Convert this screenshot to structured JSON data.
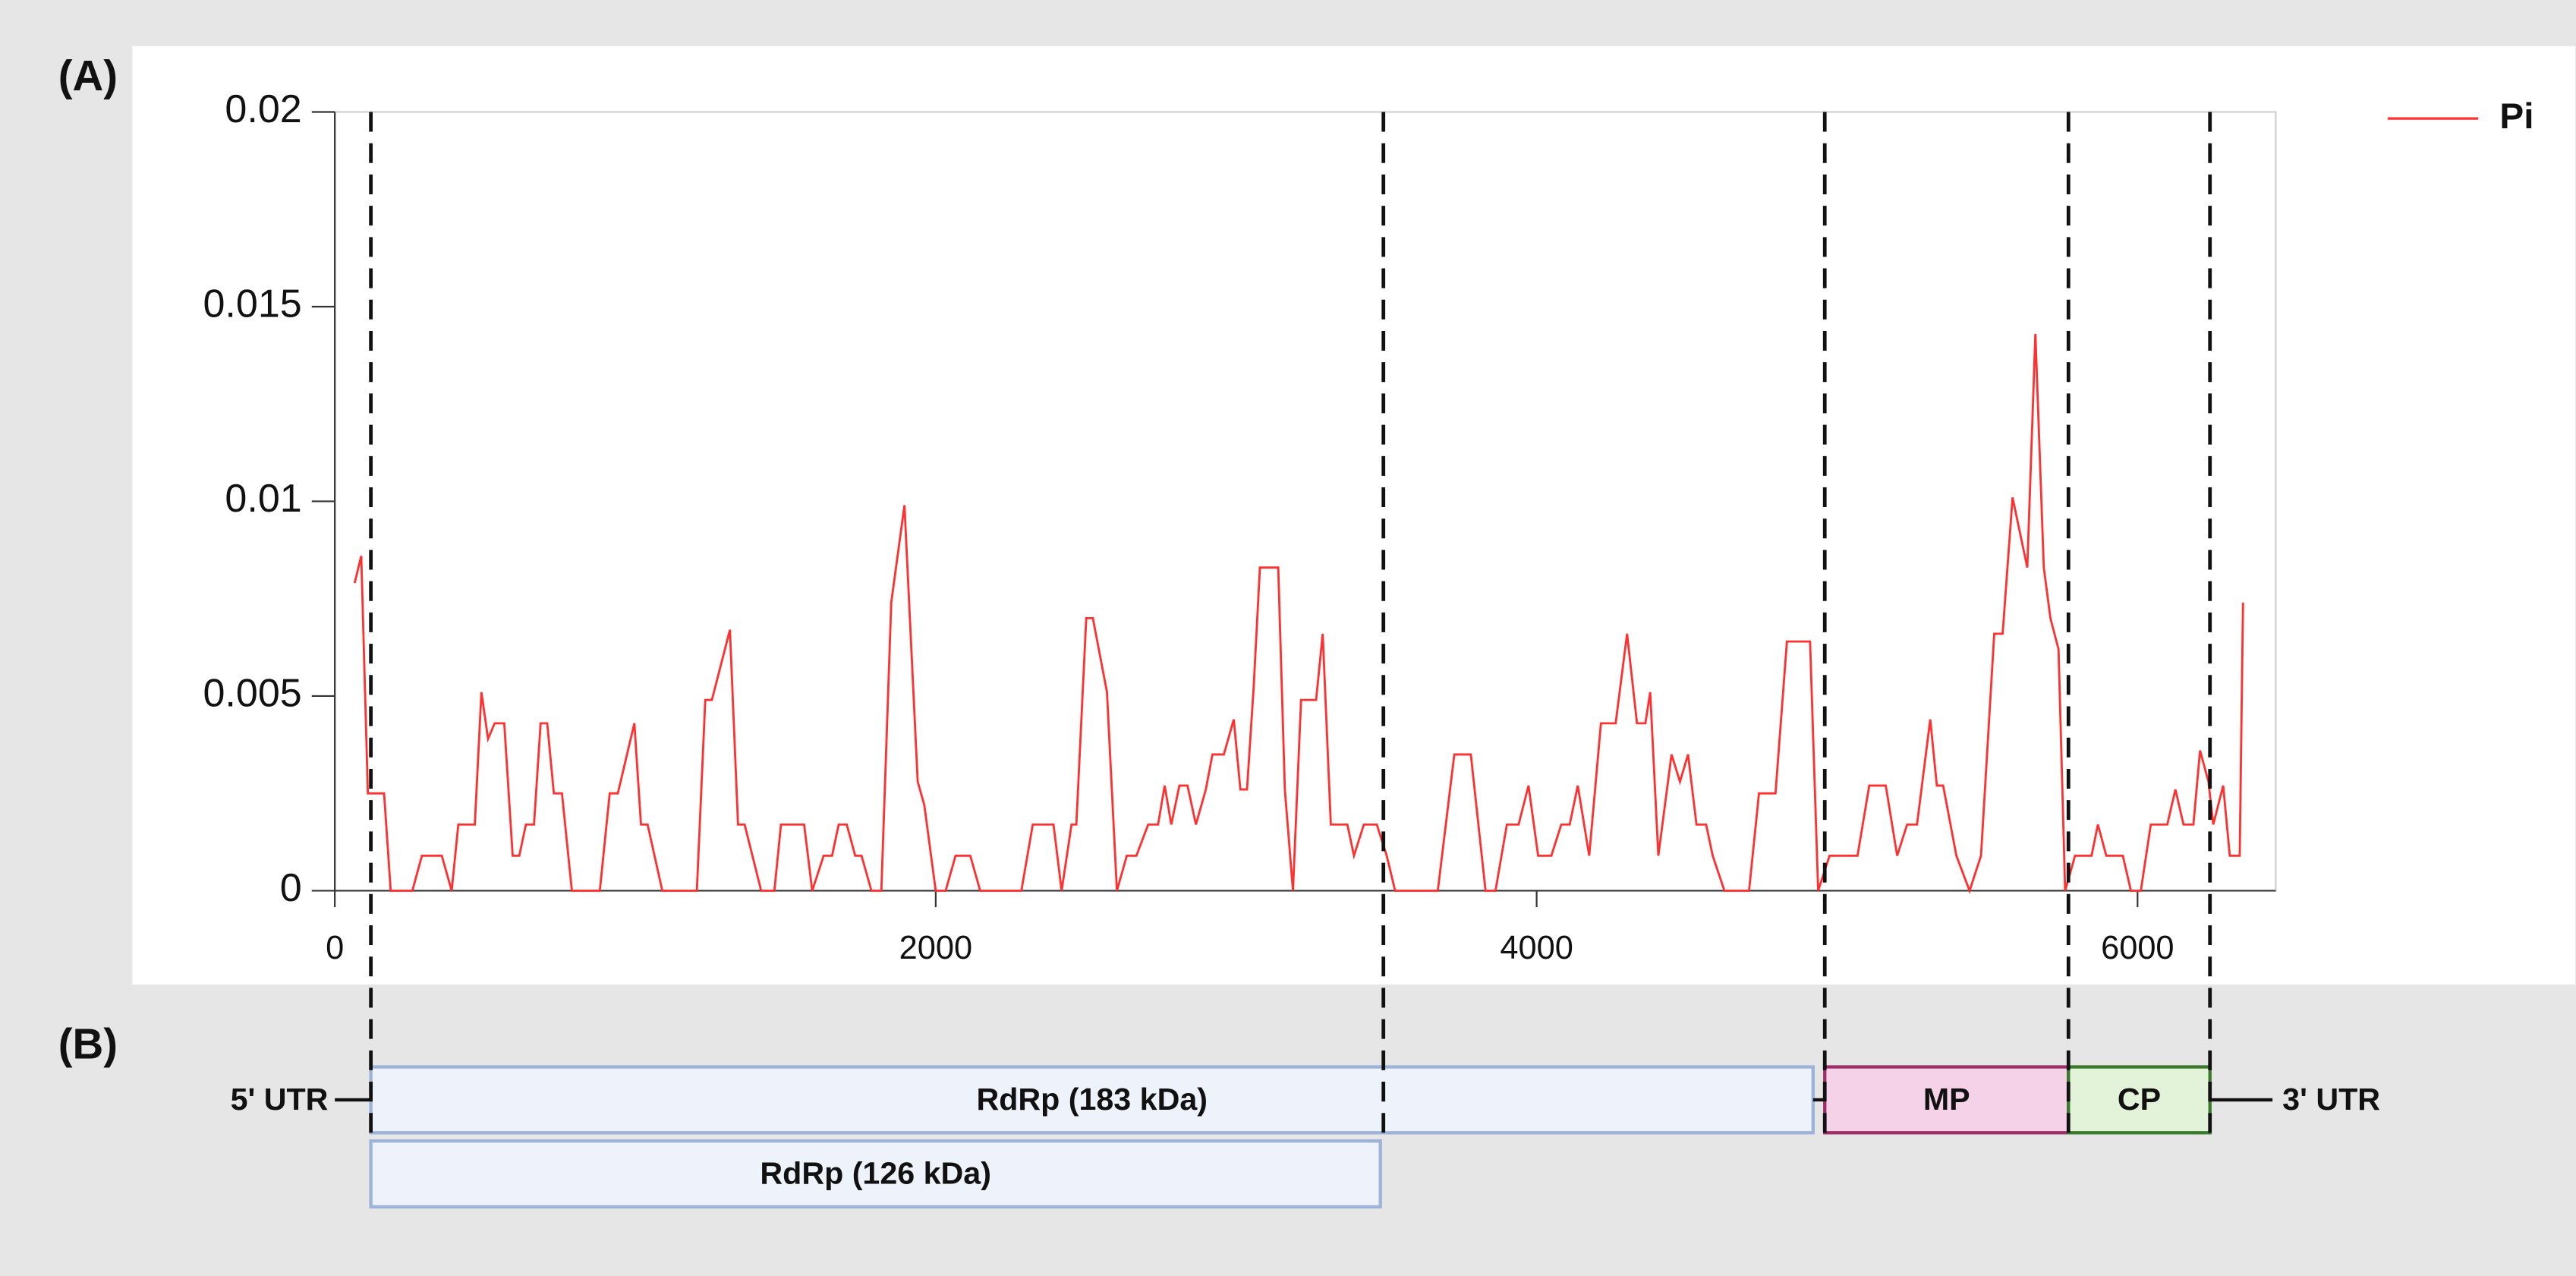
{
  "chart_data": {
    "type": "line",
    "panel_labels": [
      "(A)",
      "(B)"
    ],
    "xlim": [
      0,
      6460
    ],
    "xticks": [
      0,
      2000,
      4000,
      6000
    ],
    "ylim": [
      0,
      0.02
    ],
    "yticks": [
      0,
      0.005,
      0.01,
      0.015,
      0.02
    ],
    "legend": "top-right",
    "series": [
      {
        "name": "Pi",
        "color": "#ff3030",
        "x": [
          66,
          88,
          110,
          164,
          186,
          258,
          290,
          356,
          389,
          411,
          466,
          488,
          510,
          532,
          564,
          592,
          614,
          636,
          663,
          685,
          707,
          729,
          756,
          789,
          882,
          915,
          942,
          997,
          1019,
          1041,
          1090,
          1205,
          1233,
          1255,
          1315,
          1342,
          1364,
          1419,
          1463,
          1485,
          1562,
          1589,
          1627,
          1655,
          1677,
          1704,
          1732,
          1753,
          1786,
          1819,
          1852,
          1896,
          1940,
          1962,
          2000,
          2033,
          2066,
          2115,
          2148,
          2285,
          2323,
          2392,
          2419,
          2452,
          2468,
          2501,
          2523,
          2570,
          2603,
          2636,
          2668,
          2707,
          2740,
          2762,
          2784,
          2811,
          2838,
          2866,
          2899,
          2921,
          2959,
          2992,
          3014,
          3036,
          3058,
          3079,
          3140,
          3162,
          3189,
          3216,
          3266,
          3288,
          3315,
          3370,
          3392,
          3425,
          3468,
          3501,
          3529,
          3671,
          3726,
          3781,
          3830,
          3863,
          3901,
          3940,
          3973,
          4005,
          4049,
          4082,
          4110,
          4137,
          4175,
          4214,
          4247,
          4263,
          4301,
          4334,
          4362,
          4378,
          4405,
          4449,
          4477,
          4504,
          4532,
          4564,
          4586,
          4625,
          4707,
          4740,
          4795,
          4833,
          4910,
          4937,
          4975,
          5068,
          5107,
          5162,
          5200,
          5233,
          5266,
          5310,
          5332,
          5353,
          5397,
          5441,
          5479,
          5523,
          5551,
          5584,
          5633,
          5660,
          5688,
          5710,
          5737,
          5759,
          5792,
          5847,
          5868,
          5896,
          5951,
          5978,
          6011,
          6044,
          6099,
          6126,
          6153,
          6186,
          6208,
          6236,
          6252,
          6285,
          6307,
          6340,
          6351
        ],
        "values": [
          0.0079,
          0.0086,
          0.0025,
          0.0025,
          0,
          0,
          0.0009,
          0.0009,
          0,
          0.0017,
          0.0017,
          0.0051,
          0.0039,
          0.0043,
          0.0043,
          0.0009,
          0.0009,
          0.0017,
          0.0017,
          0.0043,
          0.0043,
          0.0025,
          0.0025,
          0,
          0,
          0.0025,
          0.0025,
          0.0043,
          0.0017,
          0.0017,
          0,
          0,
          0.0049,
          0.0049,
          0.0067,
          0.0017,
          0.0017,
          0,
          0,
          0.0017,
          0.0017,
          0,
          0.0009,
          0.0009,
          0.0017,
          0.0017,
          0.0009,
          0.0009,
          0,
          0,
          0.0074,
          0.0099,
          0.0028,
          0.0022,
          0,
          0,
          0.0009,
          0.0009,
          0,
          0,
          0.0017,
          0.0017,
          0,
          0.0017,
          0.0017,
          0.007,
          0.007,
          0.0051,
          0,
          0.0009,
          0.0009,
          0.0017,
          0.0017,
          0.0027,
          0.0017,
          0.0027,
          0.0027,
          0.0017,
          0.0026,
          0.0035,
          0.0035,
          0.0044,
          0.0026,
          0.0026,
          0.0052,
          0.0083,
          0.0083,
          0.0026,
          0,
          0.0049,
          0.0049,
          0.0066,
          0.0017,
          0.0017,
          0.0009,
          0.0017,
          0.0017,
          0.0009,
          0,
          0,
          0.0035,
          0.0035,
          0,
          0,
          0.0017,
          0.0017,
          0.0027,
          0.0009,
          0.0009,
          0.0017,
          0.0017,
          0.0027,
          0.0009,
          0.0043,
          0.0043,
          0.0043,
          0.0066,
          0.0043,
          0.0043,
          0.0051,
          0.0009,
          0.0035,
          0.0028,
          0.0035,
          0.0017,
          0.0017,
          0.0009,
          0,
          0,
          0.0025,
          0.0025,
          0.0064,
          0.0064,
          0,
          0.0009,
          0.0009,
          0.0027,
          0.0027,
          0.0009,
          0.0017,
          0.0017,
          0.0044,
          0.0027,
          0.0027,
          0.0009,
          0,
          0.0009,
          0.0066,
          0.0066,
          0.0101,
          0.0083,
          0.0143,
          0.0083,
          0.007,
          0.0062,
          0,
          0.0009,
          0.0009,
          0.0017,
          0.0009,
          0.0009,
          0,
          0,
          0.0017,
          0.0017,
          0.0026,
          0.0017,
          0.0017,
          0.0036,
          0.0028,
          0.0017,
          0.0027,
          0.0009,
          0.0009,
          0.0074
        ]
      }
    ],
    "boundaries": [
      120,
      3490,
      4959,
      5770,
      6241
    ],
    "genes": [
      {
        "label": "RdRp (183 kDa)",
        "start": 120,
        "end": 4920,
        "row": 0,
        "fill": "#edf2fb",
        "stroke": "#9db3da"
      },
      {
        "label": "RdRp (126 kDa)",
        "start": 120,
        "end": 3480,
        "row": 1,
        "fill": "#edf2fb",
        "stroke": "#9db3da"
      },
      {
        "label": "MP",
        "start": 4959,
        "end": 5770,
        "row": 0,
        "fill": "#f6d2e8",
        "stroke": "#9c2f68"
      },
      {
        "label": "CP",
        "start": 5770,
        "end": 6241,
        "row": 0,
        "fill": "#e2f3da",
        "stroke": "#3b7a2c"
      }
    ],
    "utr_labels": [
      "5' UTR",
      "3' UTR"
    ]
  }
}
